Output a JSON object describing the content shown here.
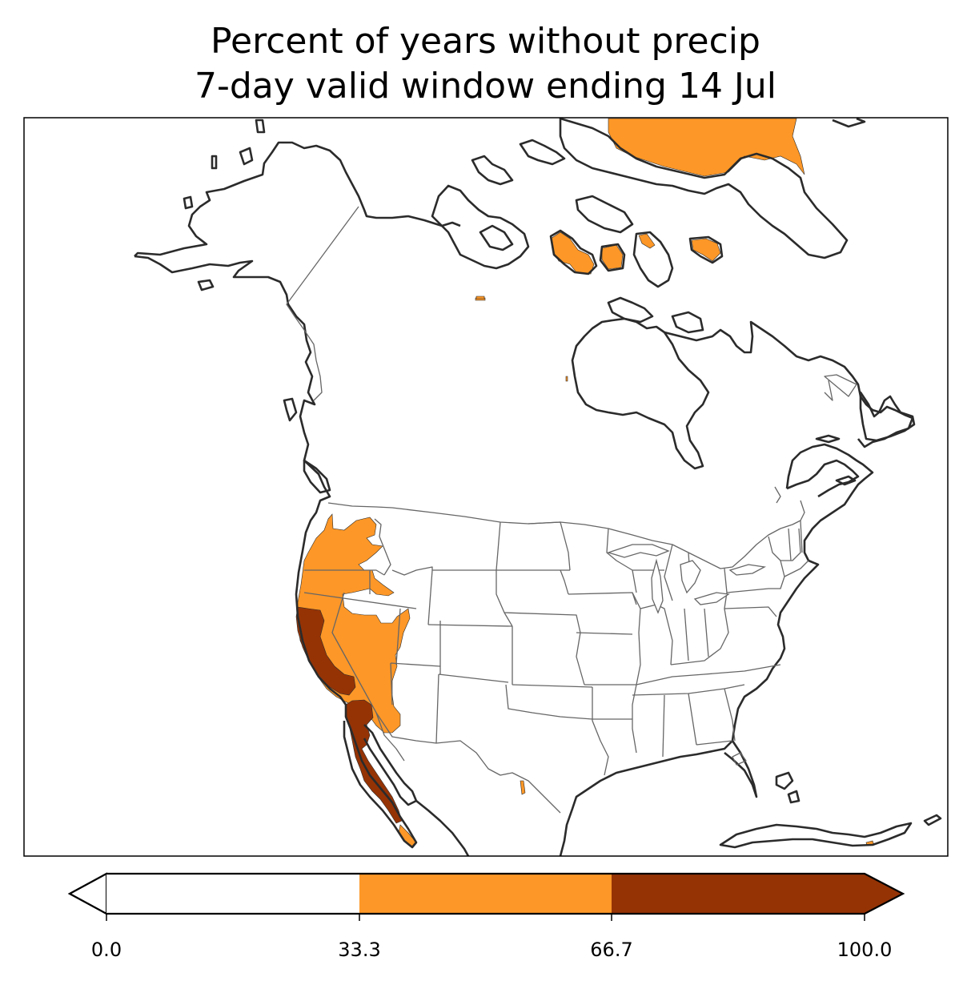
{
  "title_line1": "Percent of years without precip",
  "title_line2": "7-day valid window ending 14 Jul",
  "colorbar": {
    "ticks": [
      "0.0",
      "33.3",
      "66.7",
      "100.0"
    ],
    "bins": [
      {
        "range": [
          0.0,
          33.3
        ],
        "color": "#ffffff"
      },
      {
        "range": [
          33.3,
          66.7
        ],
        "color": "#fd9727"
      },
      {
        "range": [
          66.7,
          100.0
        ],
        "color": "#953305"
      }
    ],
    "extend": "both"
  },
  "colors": {
    "low": "#ffffff",
    "mid": "#fd9727",
    "high": "#953305",
    "coast": "#2b2b2b",
    "border": "#666666"
  }
}
